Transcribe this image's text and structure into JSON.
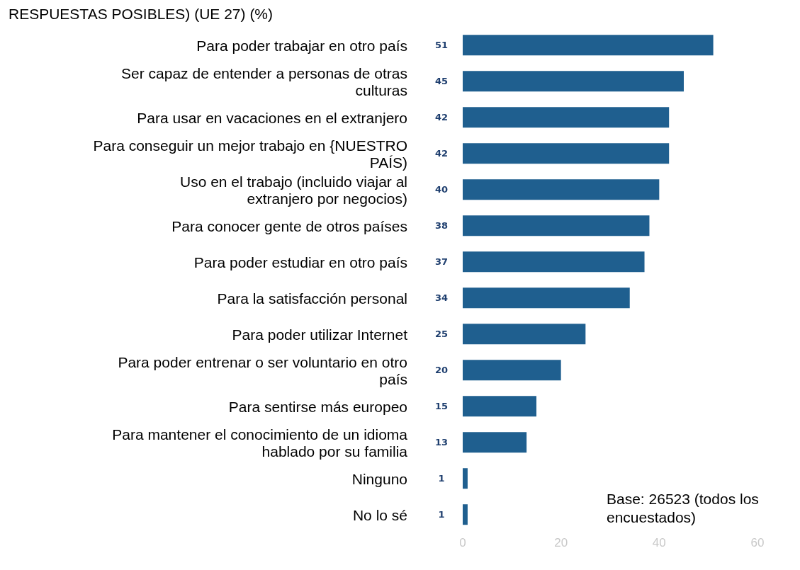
{
  "chart_data": {
    "type": "bar",
    "orientation": "horizontal",
    "title": "RESPUESTAS POSIBLES) (UE 27) (%)",
    "categories": [
      "Para poder trabajar en otro país",
      "Ser capaz de entender a personas de otras culturas",
      "Para usar en vacaciones en el extranjero",
      "Para conseguir un mejor trabajo en {NUESTRO PAÍS)",
      "Uso en el trabajo (incluido viajar al extranjero por negocios)",
      "Para conocer gente de otros países",
      "Para poder estudiar en otro país",
      "Para la satisfacción personal",
      "Para poder utilizar Internet",
      "Para poder entrenar o ser voluntario en otro país",
      "Para sentirse más europeo",
      "Para mantener el conocimiento de un idioma hablado por su familia",
      "Ninguno",
      "No lo sé"
    ],
    "values": [
      51,
      45,
      42,
      42,
      40,
      38,
      37,
      34,
      25,
      20,
      15,
      13,
      1,
      1
    ],
    "color": "#1f5f8f",
    "xlim": [
      0,
      60
    ],
    "xticks": [
      0,
      20,
      40,
      60
    ],
    "grid": false,
    "legend": false,
    "data_labels": true,
    "annotations": [
      "Base: 26523 (todos los encuestados)"
    ]
  }
}
